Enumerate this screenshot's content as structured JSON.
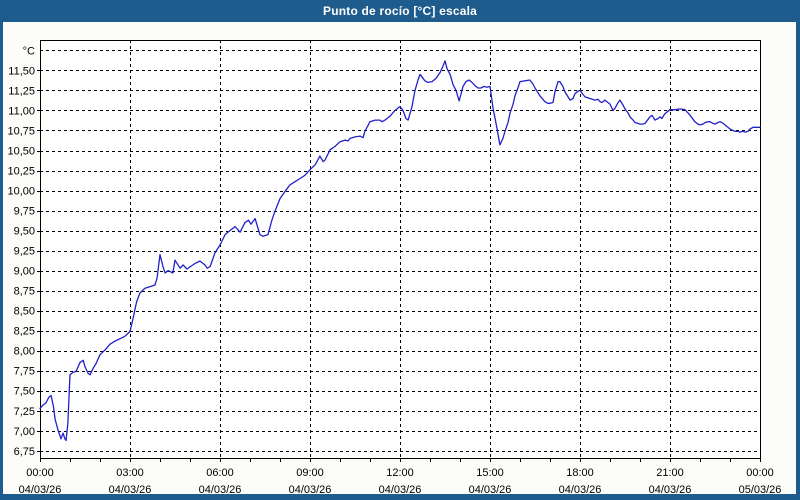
{
  "window": {
    "title": "Punto de rocío [°C] escala"
  },
  "colors": {
    "titlebar_blue": "#1d5c8c",
    "frame_blue": "#1d5c8c",
    "series_blue": "#2121c8",
    "grid_black": "#000000",
    "plot_background": "#ffffff",
    "content_background": "#fcfcf9",
    "label_color": "#000000"
  },
  "chart_data": {
    "type": "line",
    "title": "Punto de rocío [°C] escala",
    "y_unit_label": "°C",
    "xlabel": "",
    "ylabel": "°C",
    "ylim": [
      6.66,
      11.88
    ],
    "xlim_hours": [
      0,
      24
    ],
    "y_grid_step": 0.25,
    "y_grid_min": 6.75,
    "y_grid_max": 11.75,
    "x_grid_step_hours": 3,
    "x_minor_tick_hours": 1,
    "grid": "dashed",
    "legend": "none",
    "y_ticks": [
      {
        "value": 11.5,
        "label": "11,50"
      },
      {
        "value": 11.25,
        "label": "11,25"
      },
      {
        "value": 11.0,
        "label": "11,00"
      },
      {
        "value": 10.75,
        "label": "10,75"
      },
      {
        "value": 10.5,
        "label": "10,50"
      },
      {
        "value": 10.25,
        "label": "10,25"
      },
      {
        "value": 10.0,
        "label": "10,00"
      },
      {
        "value": 9.75,
        "label": "9,75"
      },
      {
        "value": 9.5,
        "label": "9,50"
      },
      {
        "value": 9.25,
        "label": "9,25"
      },
      {
        "value": 9.0,
        "label": "9,00"
      },
      {
        "value": 8.75,
        "label": "8,75"
      },
      {
        "value": 8.5,
        "label": "8,50"
      },
      {
        "value": 8.25,
        "label": "8,25"
      },
      {
        "value": 8.0,
        "label": "8,00"
      },
      {
        "value": 7.75,
        "label": "7,75"
      },
      {
        "value": 7.5,
        "label": "7,50"
      },
      {
        "value": 7.25,
        "label": "7,25"
      },
      {
        "value": 7.0,
        "label": "7,00"
      },
      {
        "value": 6.75,
        "label": "6,75"
      }
    ],
    "x_ticks": [
      {
        "hour": 0,
        "time": "00:00",
        "date": "04/03/26"
      },
      {
        "hour": 3,
        "time": "03:00",
        "date": "04/03/26"
      },
      {
        "hour": 6,
        "time": "06:00",
        "date": "04/03/26"
      },
      {
        "hour": 9,
        "time": "09:00",
        "date": "04/03/26"
      },
      {
        "hour": 12,
        "time": "12:00",
        "date": "04/03/26"
      },
      {
        "hour": 15,
        "time": "15:00",
        "date": "04/03/26"
      },
      {
        "hour": 18,
        "time": "18:00",
        "date": "04/03/26"
      },
      {
        "hour": 21,
        "time": "21:00",
        "date": "04/03/26"
      },
      {
        "hour": 24,
        "time": "00:00",
        "date": "05/03/26"
      }
    ],
    "series": [
      {
        "name": "Punto de rocío",
        "color": "#2121c8",
        "points": [
          [
            0.0,
            7.28
          ],
          [
            0.1,
            7.32
          ],
          [
            0.2,
            7.35
          ],
          [
            0.3,
            7.42
          ],
          [
            0.37,
            7.44
          ],
          [
            0.45,
            7.3
          ],
          [
            0.5,
            7.15
          ],
          [
            0.6,
            7.01
          ],
          [
            0.7,
            6.9
          ],
          [
            0.77,
            6.97
          ],
          [
            0.83,
            6.9
          ],
          [
            0.87,
            6.88
          ],
          [
            0.93,
            7.1
          ],
          [
            0.97,
            7.45
          ],
          [
            1.0,
            7.7
          ],
          [
            1.1,
            7.73
          ],
          [
            1.2,
            7.74
          ],
          [
            1.33,
            7.85
          ],
          [
            1.44,
            7.88
          ],
          [
            1.5,
            7.8
          ],
          [
            1.6,
            7.72
          ],
          [
            1.67,
            7.7
          ],
          [
            1.77,
            7.78
          ],
          [
            1.87,
            7.84
          ],
          [
            2.0,
            7.95
          ],
          [
            2.17,
            8.01
          ],
          [
            2.33,
            8.08
          ],
          [
            2.5,
            8.12
          ],
          [
            2.67,
            8.15
          ],
          [
            2.83,
            8.18
          ],
          [
            3.0,
            8.24
          ],
          [
            3.1,
            8.4
          ],
          [
            3.22,
            8.61
          ],
          [
            3.33,
            8.72
          ],
          [
            3.5,
            8.78
          ],
          [
            3.67,
            8.8
          ],
          [
            3.83,
            8.82
          ],
          [
            3.9,
            8.9
          ],
          [
            4.0,
            9.2
          ],
          [
            4.1,
            9.05
          ],
          [
            4.17,
            8.97
          ],
          [
            4.27,
            9.0
          ],
          [
            4.43,
            8.97
          ],
          [
            4.5,
            9.13
          ],
          [
            4.67,
            9.03
          ],
          [
            4.77,
            9.07
          ],
          [
            4.9,
            9.02
          ],
          [
            5.17,
            9.09
          ],
          [
            5.33,
            9.12
          ],
          [
            5.5,
            9.07
          ],
          [
            5.57,
            9.03
          ],
          [
            5.67,
            9.05
          ],
          [
            5.83,
            9.22
          ],
          [
            6.0,
            9.32
          ],
          [
            6.17,
            9.45
          ],
          [
            6.33,
            9.5
          ],
          [
            6.5,
            9.55
          ],
          [
            6.67,
            9.48
          ],
          [
            6.83,
            9.6
          ],
          [
            6.95,
            9.63
          ],
          [
            7.03,
            9.58
          ],
          [
            7.17,
            9.65
          ],
          [
            7.33,
            9.45
          ],
          [
            7.43,
            9.43
          ],
          [
            7.6,
            9.45
          ],
          [
            7.73,
            9.63
          ],
          [
            7.83,
            9.74
          ],
          [
            8.0,
            9.9
          ],
          [
            8.17,
            9.99
          ],
          [
            8.33,
            10.07
          ],
          [
            8.5,
            10.11
          ],
          [
            8.67,
            10.15
          ],
          [
            8.83,
            10.19
          ],
          [
            9.0,
            10.26
          ],
          [
            9.17,
            10.32
          ],
          [
            9.33,
            10.43
          ],
          [
            9.44,
            10.36
          ],
          [
            9.5,
            10.38
          ],
          [
            9.67,
            10.51
          ],
          [
            9.83,
            10.55
          ],
          [
            10.0,
            10.61
          ],
          [
            10.17,
            10.63
          ],
          [
            10.27,
            10.62
          ],
          [
            10.33,
            10.65
          ],
          [
            10.5,
            10.67
          ],
          [
            10.67,
            10.68
          ],
          [
            10.77,
            10.66
          ],
          [
            10.83,
            10.74
          ],
          [
            11.0,
            10.86
          ],
          [
            11.17,
            10.88
          ],
          [
            11.33,
            10.88
          ],
          [
            11.4,
            10.86
          ],
          [
            11.5,
            10.88
          ],
          [
            11.67,
            10.93
          ],
          [
            11.83,
            11.0
          ],
          [
            12.0,
            11.05
          ],
          [
            12.1,
            11.0
          ],
          [
            12.2,
            10.9
          ],
          [
            12.27,
            10.88
          ],
          [
            12.4,
            11.05
          ],
          [
            12.5,
            11.25
          ],
          [
            12.6,
            11.38
          ],
          [
            12.67,
            11.45
          ],
          [
            12.73,
            11.42
          ],
          [
            12.83,
            11.37
          ],
          [
            12.93,
            11.35
          ],
          [
            13.07,
            11.36
          ],
          [
            13.2,
            11.4
          ],
          [
            13.33,
            11.47
          ],
          [
            13.43,
            11.55
          ],
          [
            13.5,
            11.62
          ],
          [
            13.57,
            11.52
          ],
          [
            13.67,
            11.45
          ],
          [
            13.77,
            11.32
          ],
          [
            13.87,
            11.25
          ],
          [
            13.97,
            11.12
          ],
          [
            14.03,
            11.2
          ],
          [
            14.1,
            11.3
          ],
          [
            14.2,
            11.36
          ],
          [
            14.3,
            11.38
          ],
          [
            14.4,
            11.35
          ],
          [
            14.5,
            11.31
          ],
          [
            14.6,
            11.28
          ],
          [
            14.7,
            11.28
          ],
          [
            14.8,
            11.3
          ],
          [
            14.9,
            11.29
          ],
          [
            15.0,
            11.3
          ],
          [
            15.1,
            11.03
          ],
          [
            15.17,
            10.9
          ],
          [
            15.27,
            10.7
          ],
          [
            15.33,
            10.57
          ],
          [
            15.43,
            10.65
          ],
          [
            15.5,
            10.74
          ],
          [
            15.6,
            10.85
          ],
          [
            15.67,
            10.97
          ],
          [
            15.77,
            11.08
          ],
          [
            15.83,
            11.18
          ],
          [
            15.93,
            11.28
          ],
          [
            16.0,
            11.36
          ],
          [
            16.17,
            11.37
          ],
          [
            16.33,
            11.38
          ],
          [
            16.43,
            11.33
          ],
          [
            16.5,
            11.28
          ],
          [
            16.67,
            11.18
          ],
          [
            16.83,
            11.11
          ],
          [
            16.93,
            11.09
          ],
          [
            17.0,
            11.09
          ],
          [
            17.1,
            11.1
          ],
          [
            17.17,
            11.24
          ],
          [
            17.27,
            11.36
          ],
          [
            17.33,
            11.36
          ],
          [
            17.43,
            11.3
          ],
          [
            17.5,
            11.23
          ],
          [
            17.67,
            11.13
          ],
          [
            17.77,
            11.15
          ],
          [
            17.83,
            11.21
          ],
          [
            17.93,
            11.24
          ],
          [
            18.0,
            11.25
          ],
          [
            18.1,
            11.2
          ],
          [
            18.17,
            11.17
          ],
          [
            18.33,
            11.15
          ],
          [
            18.5,
            11.13
          ],
          [
            18.6,
            11.14
          ],
          [
            18.67,
            11.11
          ],
          [
            18.73,
            11.1
          ],
          [
            18.83,
            11.13
          ],
          [
            18.93,
            11.1
          ],
          [
            19.0,
            11.08
          ],
          [
            19.1,
            11.0
          ],
          [
            19.17,
            11.03
          ],
          [
            19.27,
            11.1
          ],
          [
            19.33,
            11.13
          ],
          [
            19.43,
            11.07
          ],
          [
            19.5,
            11.02
          ],
          [
            19.6,
            10.97
          ],
          [
            19.67,
            10.92
          ],
          [
            19.77,
            10.88
          ],
          [
            19.83,
            10.85
          ],
          [
            19.93,
            10.84
          ],
          [
            20.0,
            10.83
          ],
          [
            20.1,
            10.83
          ],
          [
            20.17,
            10.84
          ],
          [
            20.27,
            10.89
          ],
          [
            20.33,
            10.92
          ],
          [
            20.4,
            10.94
          ],
          [
            20.5,
            10.88
          ],
          [
            20.6,
            10.9
          ],
          [
            20.67,
            10.92
          ],
          [
            20.73,
            10.9
          ],
          [
            20.83,
            10.96
          ],
          [
            20.93,
            10.99
          ],
          [
            21.0,
            11.01
          ],
          [
            21.17,
            11.01
          ],
          [
            21.33,
            11.02
          ],
          [
            21.5,
            11.01
          ],
          [
            21.6,
            10.97
          ],
          [
            21.67,
            10.94
          ],
          [
            21.77,
            10.89
          ],
          [
            21.83,
            10.86
          ],
          [
            21.93,
            10.83
          ],
          [
            22.0,
            10.82
          ],
          [
            22.1,
            10.83
          ],
          [
            22.17,
            10.85
          ],
          [
            22.27,
            10.86
          ],
          [
            22.33,
            10.86
          ],
          [
            22.43,
            10.84
          ],
          [
            22.5,
            10.83
          ],
          [
            22.6,
            10.85
          ],
          [
            22.67,
            10.86
          ],
          [
            22.77,
            10.84
          ],
          [
            22.83,
            10.82
          ],
          [
            22.93,
            10.79
          ],
          [
            23.0,
            10.77
          ],
          [
            23.1,
            10.75
          ],
          [
            23.17,
            10.74
          ],
          [
            23.27,
            10.74
          ],
          [
            23.33,
            10.73
          ],
          [
            23.43,
            10.74
          ],
          [
            23.5,
            10.73
          ],
          [
            23.6,
            10.74
          ],
          [
            23.67,
            10.77
          ],
          [
            23.77,
            10.79
          ],
          [
            23.83,
            10.79
          ],
          [
            23.93,
            10.79
          ],
          [
            24.0,
            10.79
          ]
        ]
      }
    ]
  }
}
